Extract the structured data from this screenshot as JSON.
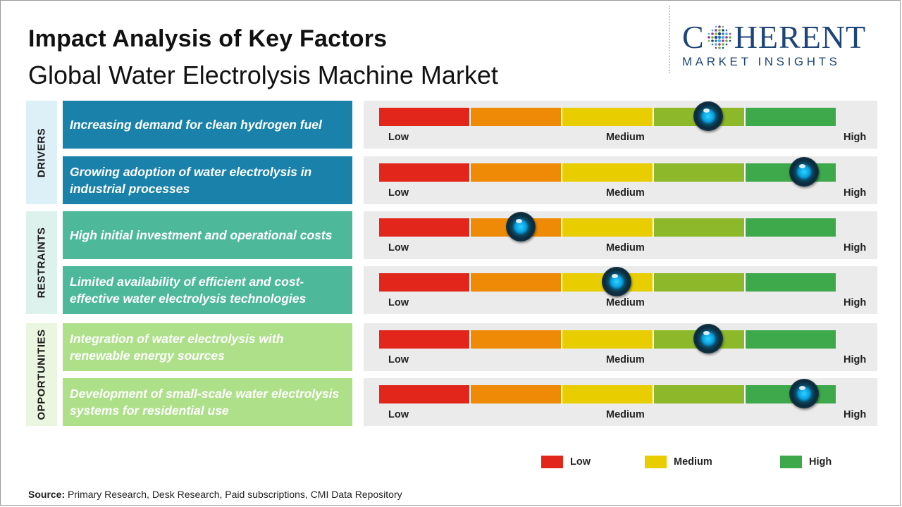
{
  "title": "Impact Analysis of Key Factors",
  "subtitle": "Global Water Electrolysis Machine Market",
  "logo": {
    "main_left": "C",
    "main_right": "HERENT",
    "sub": "MARKET INSIGHTS"
  },
  "colors": {
    "scale": [
      "#e2261b",
      "#ee8a05",
      "#e8cd00",
      "#8db829",
      "#3ea94a"
    ],
    "drivers_bg": "#1a82aa",
    "drivers_cat_bg": "#ddf0f8",
    "restraints_bg": "#4eb99a",
    "restraints_cat_bg": "#ddf2ec",
    "opportunities_bg": "#aee08a",
    "opportunities_cat_bg": "#eaf6df"
  },
  "gauge_labels": {
    "low": "Low",
    "medium": "Medium",
    "high": "High"
  },
  "chart_data": {
    "type": "table",
    "scale": [
      "Low",
      "Medium",
      "High"
    ],
    "categories": [
      {
        "name": "DRIVERS",
        "factors": [
          {
            "label": "Increasing demand for clean hydrogen fuel",
            "impact": 0.72
          },
          {
            "label": "Growing adoption of water electrolysis in industrial processes",
            "impact": 0.93
          }
        ]
      },
      {
        "name": "RESTRAINTS",
        "factors": [
          {
            "label": "High initial investment and operational costs",
            "impact": 0.31
          },
          {
            "label": "Limited availability of efficient and cost-effective water electrolysis technologies",
            "impact": 0.52
          }
        ]
      },
      {
        "name": "OPPORTUNITIES",
        "factors": [
          {
            "label": "Integration of water electrolysis with renewable energy sources",
            "impact": 0.72
          },
          {
            "label": "Development of small-scale water electrolysis systems for residential use",
            "impact": 0.93
          }
        ]
      }
    ]
  },
  "legend": [
    {
      "label": "Low",
      "color": "#e2261b"
    },
    {
      "label": "Medium",
      "color": "#e8cd00"
    },
    {
      "label": "High",
      "color": "#3ea94a"
    }
  ],
  "source": {
    "label": "Source:",
    "text": " Primary Research, Desk Research, Paid subscriptions, CMI Data Repository"
  }
}
